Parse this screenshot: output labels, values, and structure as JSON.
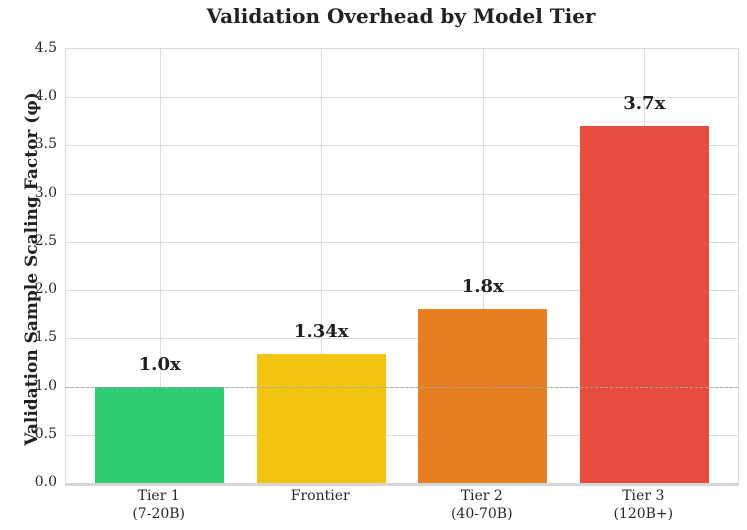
{
  "chart_data": {
    "type": "bar",
    "title": "Validation Overhead by Model Tier",
    "ylabel": "Validation Sample Scaling Factor (φ)",
    "xlabel": "",
    "categories": [
      [
        "Tier 1",
        "(7-20B)"
      ],
      [
        "Frontier"
      ],
      [
        "Tier 2",
        "(40-70B)"
      ],
      [
        "Tier 3",
        "(120B+)"
      ]
    ],
    "values": [
      1.0,
      1.34,
      1.8,
      3.7
    ],
    "bar_labels": [
      "1.0x",
      "1.34x",
      "1.8x",
      "3.7x"
    ],
    "bar_colors": [
      "#2ecc71",
      "#f1c40f",
      "#e67e22",
      "#e74c3c"
    ],
    "ylim": [
      0,
      4.5
    ],
    "ytick_step": 0.5,
    "ytick_labels": [
      "0.0",
      "0.5",
      "1.0",
      "1.5",
      "2.0",
      "2.5",
      "3.0",
      "3.5",
      "4.0",
      "4.5"
    ],
    "grid": true,
    "legend": "none",
    "reference_line": {
      "y": 1.0,
      "style": "dashed",
      "color": "#a9a9a9"
    }
  },
  "style_colors": {
    "background": "#ffffff",
    "gridline": "#dcdcdc",
    "spine": "#d9d9d9",
    "title_text": "#212121",
    "tick_text": "#262626",
    "value_label_text": "#1f1f1f"
  }
}
